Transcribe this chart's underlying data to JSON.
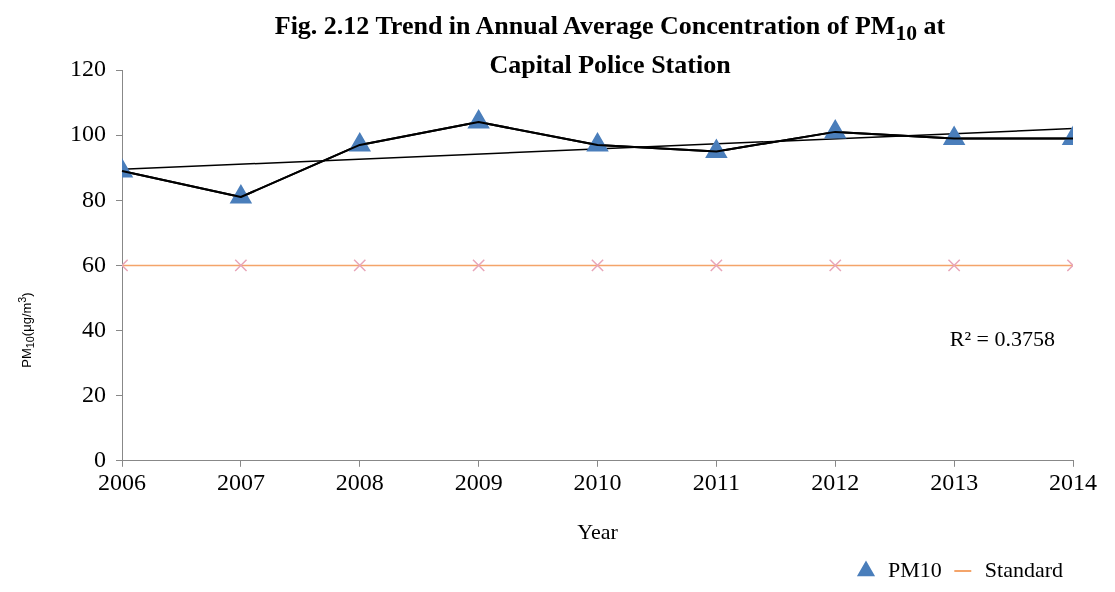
{
  "chart_data": {
    "type": "line",
    "title": "Fig. 2.12 Trend in Annual Average Concentration of PM$_{10}$ at Capital Police Station",
    "xlabel": "Year",
    "ylabel": "PM$_{10}$(μg/m$^{3}$)",
    "x": [
      2006,
      2007,
      2008,
      2009,
      2010,
      2011,
      2012,
      2013,
      2014
    ],
    "series": [
      {
        "name": "PM10",
        "color": "#4a7ebb",
        "marker": "triangle",
        "values": [
          89,
          81,
          97,
          104,
          97,
          95,
          101,
          99,
          99
        ]
      },
      {
        "name": "Standard",
        "color": "#f4a46a",
        "marker": "cross",
        "values": [
          60,
          60,
          60,
          60,
          60,
          60,
          60,
          60,
          60
        ]
      },
      {
        "type": "line",
        "color": "#000000",
        "marker": "none",
        "x": [
          2006,
          2014
        ],
        "values": [
          89.5,
          102
        ]
      }
    ],
    "xlim": [
      2006,
      2014
    ],
    "xticks": [
      2006,
      2007,
      2008,
      2009,
      2010,
      2011,
      2012,
      2013,
      2014
    ],
    "ylim": [
      0,
      120
    ],
    "yticks": [
      0,
      20,
      40,
      60,
      80,
      100,
      120
    ],
    "grid": false,
    "legend": "bottom right",
    "annotations": [
      "R² = 0.3758"
    ]
  }
}
